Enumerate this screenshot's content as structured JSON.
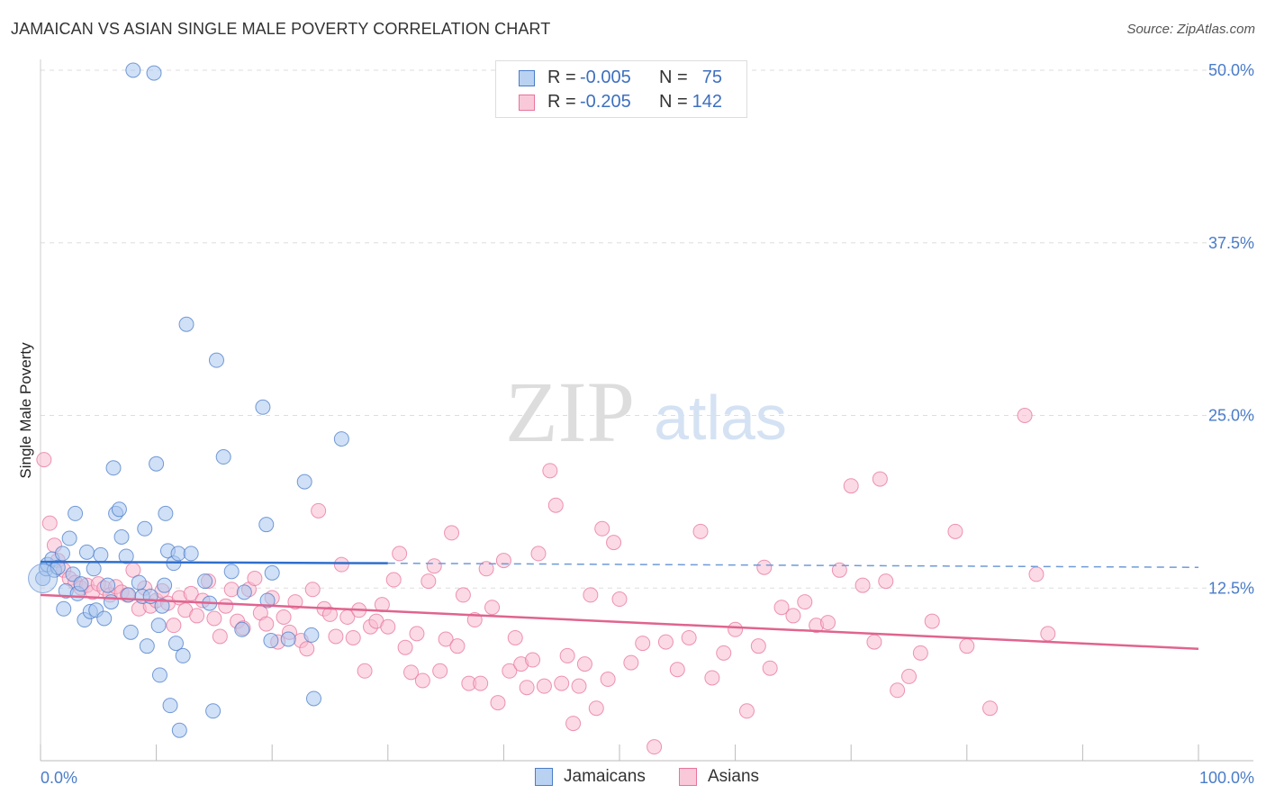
{
  "title": "JAMAICAN VS ASIAN SINGLE MALE POVERTY CORRELATION CHART",
  "source": "Source: ZipAtlas.com",
  "watermark": {
    "zip": "ZIP",
    "atlas": "atlas"
  },
  "legend_top": {
    "rows": [
      {
        "r_label": "R =",
        "r_value": "-0.005",
        "n_label": "N =",
        "n_value": "75",
        "color": "#4a7cc9"
      },
      {
        "r_label": "R =",
        "r_value": "-0.205",
        "n_label": "N =",
        "n_value": "142",
        "color": "#e8739b"
      }
    ]
  },
  "legend_bottom": {
    "items": [
      {
        "label": "Jamaicans",
        "color": "#4a7cc9"
      },
      {
        "label": "Asians",
        "color": "#e8739b"
      }
    ]
  },
  "chart_data": {
    "type": "scatter",
    "title": "JAMAICAN VS ASIAN SINGLE MALE POVERTY CORRELATION CHART",
    "xlabel": "",
    "ylabel": "Single Male Poverty",
    "xlim": [
      0,
      100
    ],
    "ylim": [
      0,
      50
    ],
    "x_tick_labels": [
      "0.0%",
      "100.0%"
    ],
    "y_ticks": [
      12.5,
      25.0,
      37.5,
      50.0
    ],
    "y_tick_labels": [
      "12.5%",
      "25.0%",
      "37.5%",
      "50.0%"
    ],
    "grid": true,
    "legend_position": "top-center",
    "series": [
      {
        "name": "Jamaicans",
        "color": "#4a7cc9",
        "fill": "#a9c6ee",
        "trend": {
          "x": [
            0,
            30
          ],
          "y": [
            14.4,
            14.3
          ],
          "dashed_extension_to": [
            100,
            14.0
          ]
        },
        "points": [
          [
            0.2,
            13.2
          ],
          [
            0.5,
            13.9
          ],
          [
            0.6,
            14.2
          ],
          [
            1.0,
            14.6
          ],
          [
            1.2,
            13.8
          ],
          [
            1.5,
            14.0
          ],
          [
            1.9,
            15.0
          ],
          [
            2.0,
            11.0
          ],
          [
            2.2,
            12.3
          ],
          [
            2.5,
            16.1
          ],
          [
            2.8,
            13.5
          ],
          [
            3.0,
            17.9
          ],
          [
            3.2,
            12.1
          ],
          [
            3.5,
            12.8
          ],
          [
            3.8,
            10.2
          ],
          [
            4.0,
            15.1
          ],
          [
            4.3,
            10.8
          ],
          [
            4.6,
            13.9
          ],
          [
            4.8,
            10.9
          ],
          [
            5.2,
            14.9
          ],
          [
            5.5,
            10.3
          ],
          [
            5.8,
            12.7
          ],
          [
            6.1,
            11.5
          ],
          [
            6.3,
            21.2
          ],
          [
            6.5,
            17.9
          ],
          [
            6.8,
            18.2
          ],
          [
            7.0,
            16.2
          ],
          [
            7.4,
            14.8
          ],
          [
            7.6,
            12.0
          ],
          [
            7.8,
            9.3
          ],
          [
            8.0,
            50.0
          ],
          [
            8.5,
            12.9
          ],
          [
            8.8,
            11.9
          ],
          [
            9.0,
            16.8
          ],
          [
            9.2,
            8.3
          ],
          [
            9.5,
            11.9
          ],
          [
            9.8,
            49.8
          ],
          [
            10.0,
            21.5
          ],
          [
            10.2,
            9.8
          ],
          [
            10.3,
            6.2
          ],
          [
            10.5,
            11.2
          ],
          [
            10.7,
            12.7
          ],
          [
            10.8,
            17.9
          ],
          [
            11.0,
            15.2
          ],
          [
            11.2,
            4.0
          ],
          [
            11.5,
            14.3
          ],
          [
            11.7,
            8.5
          ],
          [
            11.9,
            15.0
          ],
          [
            12.0,
            2.2
          ],
          [
            12.3,
            7.6
          ],
          [
            12.6,
            31.6
          ],
          [
            13.0,
            15.0
          ],
          [
            14.2,
            13.0
          ],
          [
            14.6,
            11.4
          ],
          [
            14.9,
            3.6
          ],
          [
            15.2,
            29.0
          ],
          [
            15.8,
            22.0
          ],
          [
            16.5,
            13.7
          ],
          [
            17.4,
            9.5
          ],
          [
            17.6,
            12.2
          ],
          [
            19.2,
            25.6
          ],
          [
            19.5,
            17.1
          ],
          [
            19.6,
            11.6
          ],
          [
            19.9,
            8.7
          ],
          [
            20.0,
            13.6
          ],
          [
            21.4,
            8.8
          ],
          [
            22.8,
            20.2
          ],
          [
            23.4,
            9.1
          ],
          [
            23.6,
            4.5
          ],
          [
            26.0,
            23.3
          ]
        ]
      },
      {
        "name": "Asians",
        "color": "#e8739b",
        "fill": "#f7bcd0",
        "trend": {
          "x": [
            0,
            100
          ],
          "y": [
            12.0,
            8.1
          ]
        },
        "points": [
          [
            0.3,
            21.8
          ],
          [
            0.8,
            17.2
          ],
          [
            1.2,
            15.6
          ],
          [
            1.5,
            14.5
          ],
          [
            2.0,
            13.8
          ],
          [
            2.5,
            13.2
          ],
          [
            3.0,
            12.9
          ],
          [
            3.5,
            12.5
          ],
          [
            4.0,
            12.7
          ],
          [
            4.5,
            12.2
          ],
          [
            5.0,
            12.8
          ],
          [
            5.5,
            12.5
          ],
          [
            6.0,
            12.0
          ],
          [
            6.5,
            12.6
          ],
          [
            7.0,
            12.2
          ],
          [
            7.5,
            12.0
          ],
          [
            8.0,
            13.8
          ],
          [
            8.5,
            11.0
          ],
          [
            9.0,
            12.5
          ],
          [
            9.5,
            11.2
          ],
          [
            10.0,
            11.6
          ],
          [
            10.5,
            12.3
          ],
          [
            11.0,
            11.4
          ],
          [
            11.5,
            9.8
          ],
          [
            12.0,
            11.8
          ],
          [
            12.5,
            10.9
          ],
          [
            13.0,
            12.1
          ],
          [
            13.5,
            10.5
          ],
          [
            14.0,
            11.6
          ],
          [
            14.5,
            13.0
          ],
          [
            15.0,
            10.3
          ],
          [
            15.5,
            9.0
          ],
          [
            16.0,
            11.2
          ],
          [
            16.5,
            12.4
          ],
          [
            17.0,
            10.1
          ],
          [
            17.5,
            9.6
          ],
          [
            18.0,
            12.4
          ],
          [
            18.5,
            13.2
          ],
          [
            19.0,
            10.7
          ],
          [
            19.5,
            9.9
          ],
          [
            20.0,
            11.8
          ],
          [
            20.5,
            8.6
          ],
          [
            21.0,
            10.4
          ],
          [
            21.5,
            9.3
          ],
          [
            22.0,
            11.5
          ],
          [
            22.5,
            8.7
          ],
          [
            23.0,
            8.1
          ],
          [
            23.5,
            12.4
          ],
          [
            24.0,
            18.1
          ],
          [
            24.5,
            11.0
          ],
          [
            25.0,
            10.6
          ],
          [
            25.5,
            9.0
          ],
          [
            26.0,
            14.2
          ],
          [
            26.5,
            10.4
          ],
          [
            27.0,
            8.9
          ],
          [
            27.5,
            10.9
          ],
          [
            28.0,
            6.5
          ],
          [
            28.5,
            9.7
          ],
          [
            29.0,
            10.1
          ],
          [
            29.5,
            11.3
          ],
          [
            30.0,
            9.7
          ],
          [
            30.5,
            13.1
          ],
          [
            31.0,
            15.0
          ],
          [
            31.5,
            8.2
          ],
          [
            32.0,
            6.4
          ],
          [
            32.5,
            9.2
          ],
          [
            33.0,
            5.8
          ],
          [
            33.5,
            13.0
          ],
          [
            34.0,
            14.1
          ],
          [
            34.5,
            6.5
          ],
          [
            35.0,
            8.8
          ],
          [
            35.5,
            16.5
          ],
          [
            36.0,
            8.3
          ],
          [
            36.5,
            12.0
          ],
          [
            37.0,
            5.6
          ],
          [
            37.5,
            10.2
          ],
          [
            38.0,
            5.6
          ],
          [
            38.5,
            13.9
          ],
          [
            39.0,
            11.1
          ],
          [
            39.5,
            4.2
          ],
          [
            40.0,
            14.5
          ],
          [
            40.5,
            6.5
          ],
          [
            41.0,
            8.9
          ],
          [
            41.5,
            7.0
          ],
          [
            42.0,
            5.3
          ],
          [
            42.5,
            7.3
          ],
          [
            43.0,
            15.0
          ],
          [
            43.5,
            5.4
          ],
          [
            44.0,
            21.0
          ],
          [
            44.5,
            18.5
          ],
          [
            45.0,
            5.6
          ],
          [
            45.5,
            7.6
          ],
          [
            46.0,
            2.7
          ],
          [
            46.5,
            5.4
          ],
          [
            47.0,
            7.0
          ],
          [
            47.5,
            12.0
          ],
          [
            48.0,
            3.8
          ],
          [
            48.5,
            16.8
          ],
          [
            49.0,
            5.9
          ],
          [
            49.5,
            15.8
          ],
          [
            50.0,
            11.7
          ],
          [
            51.0,
            7.1
          ],
          [
            52.0,
            8.5
          ],
          [
            53.0,
            1.0
          ],
          [
            54.0,
            8.6
          ],
          [
            55.0,
            6.6
          ],
          [
            56.0,
            8.9
          ],
          [
            57.0,
            16.6
          ],
          [
            58.0,
            6.0
          ],
          [
            59.0,
            7.8
          ],
          [
            60.0,
            9.5
          ],
          [
            61.0,
            3.6
          ],
          [
            62.0,
            8.3
          ],
          [
            62.5,
            14.0
          ],
          [
            63.0,
            6.7
          ],
          [
            64.0,
            11.1
          ],
          [
            65.0,
            10.5
          ],
          [
            66.0,
            11.5
          ],
          [
            67.0,
            9.8
          ],
          [
            68.0,
            10.0
          ],
          [
            69.0,
            13.8
          ],
          [
            70.0,
            19.9
          ],
          [
            71.0,
            12.7
          ],
          [
            72.0,
            8.6
          ],
          [
            72.5,
            20.4
          ],
          [
            73.0,
            13.0
          ],
          [
            74.0,
            5.1
          ],
          [
            75.0,
            6.1
          ],
          [
            76.0,
            7.8
          ],
          [
            77.0,
            10.1
          ],
          [
            79.0,
            16.6
          ],
          [
            80.0,
            8.3
          ],
          [
            82.0,
            3.8
          ],
          [
            85.0,
            25.0
          ],
          [
            86.0,
            13.5
          ],
          [
            87.0,
            9.2
          ]
        ]
      }
    ]
  }
}
